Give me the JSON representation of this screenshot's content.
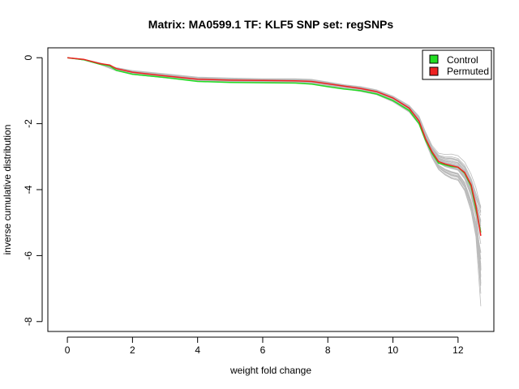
{
  "chart_data": {
    "type": "line",
    "title": "Matrix: MA0599.1 TF: KLF5 SNP set: regSNPs",
    "xlabel": "weight fold change",
    "ylabel": "inverse cumulative distribution",
    "xlim": [
      -0.6,
      13.1
    ],
    "ylim": [
      -8.3,
      0.3
    ],
    "xticks": [
      0,
      2,
      4,
      6,
      8,
      10,
      12
    ],
    "xtick_labels": [
      "0",
      "2",
      "4",
      "6",
      "8",
      "10",
      "12"
    ],
    "yticks": [
      0,
      -2,
      -4,
      -6,
      -8
    ],
    "ytick_labels": [
      "0",
      "-2",
      "-4",
      "-6",
      "-8"
    ],
    "grid": false,
    "legend": {
      "placement": "top-right",
      "entries": [
        {
          "label": "Control",
          "color": "#22dd22"
        },
        {
          "label": "Permuted",
          "color": "#ee2222"
        }
      ]
    },
    "background_ensemble": {
      "color": "#bbbbbb",
      "count": 40,
      "x": [
        0,
        0.5,
        1.0,
        1.5,
        2.0,
        3.0,
        4.0,
        5.0,
        6.0,
        7.0,
        7.5,
        8.0,
        8.5,
        9.0,
        9.5,
        10.0,
        10.5,
        10.8,
        11.0,
        11.2,
        11.4,
        11.6,
        11.8,
        12.0,
        12.2,
        12.4,
        12.55,
        12.7
      ],
      "mean_y": [
        0,
        -0.06,
        -0.18,
        -0.35,
        -0.45,
        -0.55,
        -0.65,
        -0.68,
        -0.7,
        -0.7,
        -0.72,
        -0.8,
        -0.88,
        -0.95,
        -1.05,
        -1.25,
        -1.55,
        -1.9,
        -2.4,
        -2.85,
        -3.15,
        -3.25,
        -3.3,
        -3.35,
        -3.6,
        -4.1,
        -4.7,
        -5.2
      ],
      "spread": [
        0,
        0.01,
        0.02,
        0.04,
        0.05,
        0.05,
        0.05,
        0.05,
        0.05,
        0.05,
        0.05,
        0.05,
        0.05,
        0.06,
        0.06,
        0.07,
        0.08,
        0.1,
        0.12,
        0.15,
        0.2,
        0.25,
        0.3,
        0.3,
        0.35,
        0.45,
        0.6,
        0.8
      ]
    },
    "series": [
      {
        "name": "Control",
        "color": "#22dd22",
        "x": [
          0,
          0.5,
          1.0,
          1.3,
          1.5,
          2.0,
          3.0,
          4.0,
          5.0,
          6.0,
          7.0,
          7.5,
          8.0,
          8.5,
          9.0,
          9.5,
          10.0,
          10.5,
          10.8,
          11.0,
          11.2,
          11.4,
          11.6,
          11.8,
          12.0,
          12.2,
          12.4,
          12.55,
          12.7
        ],
        "y": [
          0,
          -0.06,
          -0.2,
          -0.25,
          -0.38,
          -0.5,
          -0.6,
          -0.72,
          -0.75,
          -0.76,
          -0.77,
          -0.8,
          -0.88,
          -0.95,
          -1.0,
          -1.1,
          -1.3,
          -1.6,
          -2.0,
          -2.5,
          -2.9,
          -3.2,
          -3.25,
          -3.3,
          -3.32,
          -3.5,
          -3.9,
          -4.6,
          -5.3
        ]
      },
      {
        "name": "Permuted",
        "color": "#ee2222",
        "x": [
          0,
          0.5,
          1.0,
          1.3,
          1.5,
          2.0,
          3.0,
          4.0,
          5.0,
          6.0,
          7.0,
          7.5,
          8.0,
          8.5,
          9.0,
          9.5,
          10.0,
          10.5,
          10.8,
          11.0,
          11.2,
          11.4,
          11.6,
          11.8,
          12.0,
          12.2,
          12.4,
          12.55,
          12.7
        ],
        "y": [
          0,
          -0.05,
          -0.18,
          -0.22,
          -0.33,
          -0.44,
          -0.55,
          -0.65,
          -0.68,
          -0.69,
          -0.7,
          -0.72,
          -0.79,
          -0.86,
          -0.93,
          -1.03,
          -1.22,
          -1.53,
          -1.92,
          -2.45,
          -2.85,
          -3.15,
          -3.22,
          -3.27,
          -3.32,
          -3.48,
          -3.85,
          -4.5,
          -5.4
        ]
      }
    ]
  }
}
